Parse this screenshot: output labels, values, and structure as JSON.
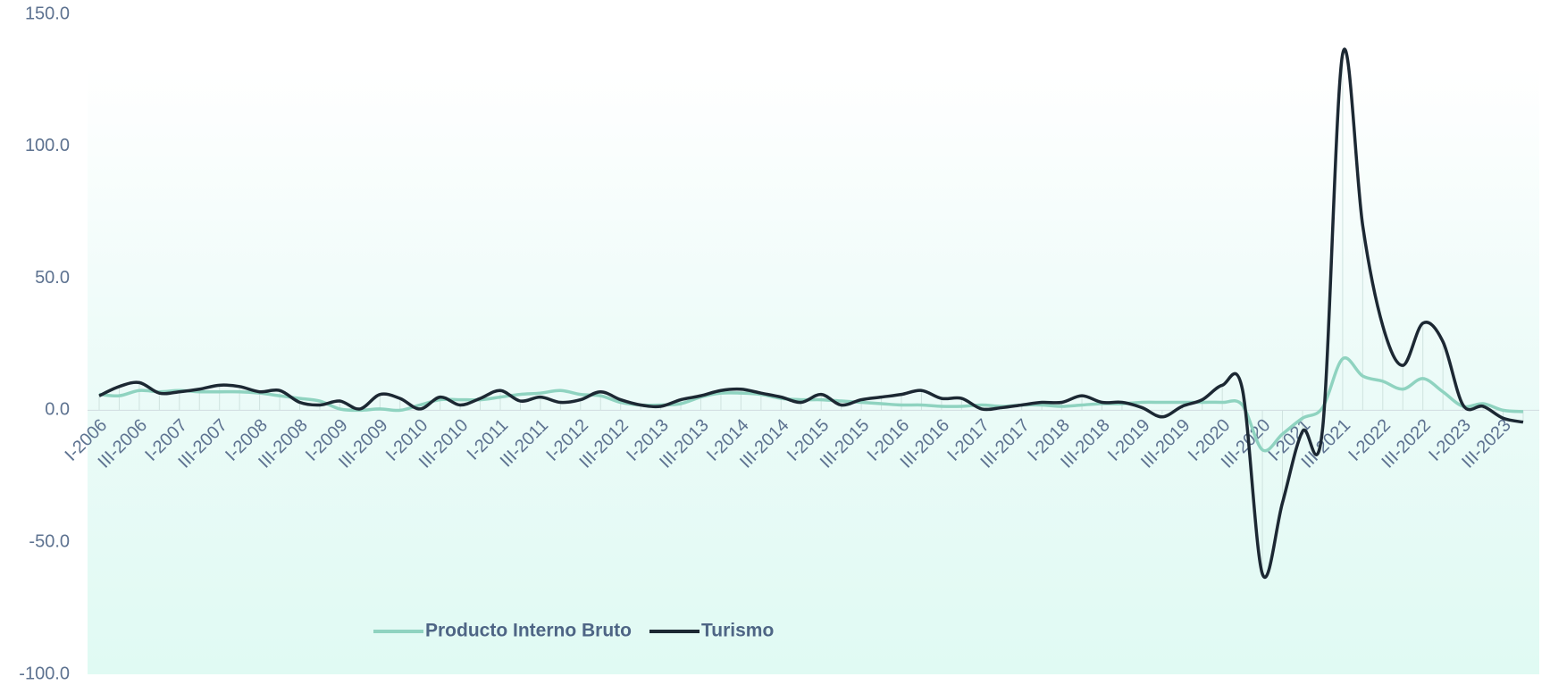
{
  "chart_data": {
    "type": "line",
    "categories": [
      "I-2006",
      null,
      "III-2006",
      null,
      "I-2007",
      null,
      "III-2007",
      null,
      "I-2008",
      null,
      "III-2008",
      null,
      "I-2009",
      null,
      "III-2009",
      null,
      "I-2010",
      null,
      "III-2010",
      null,
      "I-2011",
      null,
      "III-2011",
      null,
      "I-2012",
      null,
      "III-2012",
      null,
      "I-2013",
      null,
      "III-2013",
      null,
      "I-2014",
      null,
      "III-2014",
      null,
      "I-2015",
      null,
      "III-2015",
      null,
      "I-2016",
      null,
      "III-2016",
      null,
      "I-2017",
      null,
      "III-2017",
      null,
      "I-2018",
      null,
      "III-2018",
      null,
      "I-2019",
      null,
      "III-2019",
      null,
      "I-2020",
      null,
      "III-2020",
      null,
      "I-2021",
      null,
      "III-2021",
      null,
      "I-2022",
      null,
      "III-2022",
      null,
      "I-2023",
      null,
      "III-2023",
      null
    ],
    "series": [
      {
        "name": "Producto Interno Bruto",
        "color": "#8fd3c0",
        "values": [
          6,
          5.5,
          7.5,
          7,
          7.5,
          7,
          7,
          7,
          6.5,
          5.5,
          4.5,
          3.5,
          0.5,
          0,
          0.5,
          0,
          2,
          4,
          4,
          4,
          5,
          6,
          6.5,
          7.5,
          6,
          5.5,
          3,
          2,
          2,
          2.5,
          5,
          6.5,
          6.5,
          6,
          4.5,
          4,
          4,
          3.5,
          3,
          2.5,
          2,
          2,
          1.5,
          1.5,
          2,
          1.5,
          2,
          2,
          1.5,
          2,
          2.5,
          2.5,
          3,
          3,
          3,
          3,
          3,
          2,
          -15,
          -9,
          -3,
          1,
          19.5,
          13,
          11,
          8,
          12,
          7,
          1.5,
          2.5,
          0,
          -0.5
        ]
      },
      {
        "name": "Turismo",
        "color": "#1c2833",
        "values": [
          5.5,
          9,
          10.5,
          6.5,
          7,
          8,
          9.5,
          9,
          7,
          7.5,
          3,
          2,
          3.5,
          0.5,
          6,
          4.5,
          0.5,
          5,
          2,
          4.5,
          7.5,
          3.5,
          5,
          3,
          4,
          7,
          4,
          2,
          1.5,
          4,
          5.5,
          7.5,
          8,
          6.5,
          5,
          3,
          6,
          2,
          4,
          5,
          6,
          7.5,
          4.5,
          4.5,
          0.5,
          1,
          2,
          3,
          3,
          5.5,
          3,
          3,
          1,
          -2.5,
          1.5,
          4,
          9.5,
          8,
          -62,
          -35,
          -8,
          -7,
          135,
          70,
          32,
          17,
          33,
          26,
          2,
          1.5,
          -3,
          -4.5
        ]
      }
    ],
    "ylim": [
      -100,
      150
    ],
    "yticks": [
      {
        "value": -100,
        "label": "-100.0"
      },
      {
        "value": -50,
        "label": "-50.0"
      },
      {
        "value": 0,
        "label": "0.0"
      },
      {
        "value": 50,
        "label": "50.0"
      },
      {
        "value": 100,
        "label": "100.0"
      },
      {
        "value": 150,
        "label": "150.0"
      }
    ],
    "legend": "bottom-left"
  }
}
